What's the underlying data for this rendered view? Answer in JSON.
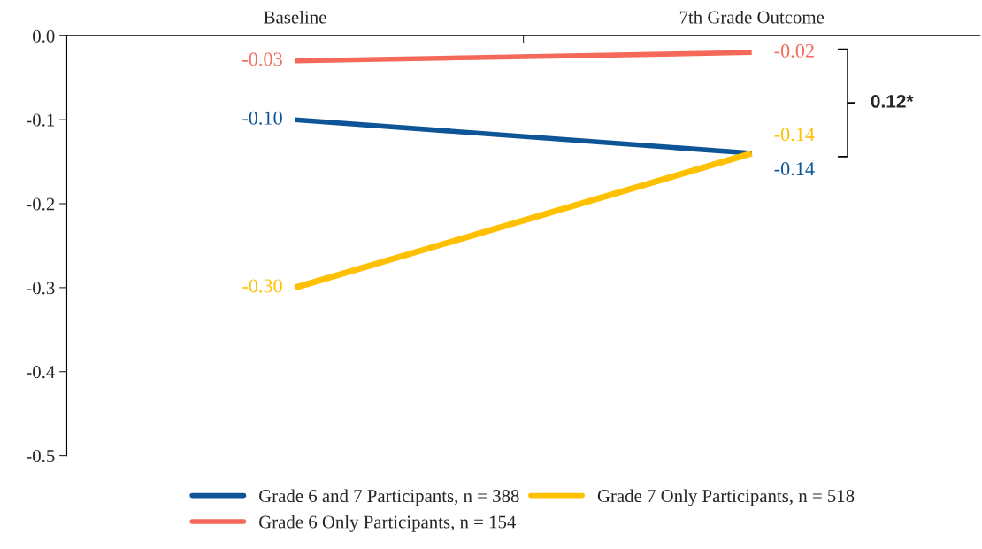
{
  "chart_data": {
    "type": "line",
    "categories": [
      "Baseline",
      "7th Grade Outcome"
    ],
    "series": [
      {
        "name": "Grade 6 and 7 Participants, n = 388",
        "color": "#0d5597",
        "values": [
          -0.1,
          -0.14
        ],
        "value_labels": [
          "-0.10",
          "-0.14"
        ]
      },
      {
        "name": "Grade 6 Only Participants, n = 154",
        "color": "#f4695a",
        "values": [
          -0.03,
          -0.02
        ],
        "value_labels": [
          "-0.03",
          "-0.02"
        ]
      },
      {
        "name": "Grade 7 Only Participants, n = 518",
        "color": "#ffc000",
        "values": [
          -0.3,
          -0.14
        ],
        "value_labels": [
          "-0.30",
          "-0.14"
        ]
      }
    ],
    "ylim": [
      -0.5,
      0
    ],
    "yticks": [
      {
        "value": 0,
        "label": "0.0"
      },
      {
        "value": -0.1,
        "label": "-0.1"
      },
      {
        "value": -0.2,
        "label": "-0.2"
      },
      {
        "value": -0.3,
        "label": "-0.3"
      },
      {
        "value": -0.4,
        "label": "-0.4"
      },
      {
        "value": -0.5,
        "label": "-0.5"
      }
    ],
    "annotations": [
      "0.12*"
    ],
    "legend": "bottom",
    "grid": false,
    "marker": "none",
    "line_style": "solid"
  }
}
